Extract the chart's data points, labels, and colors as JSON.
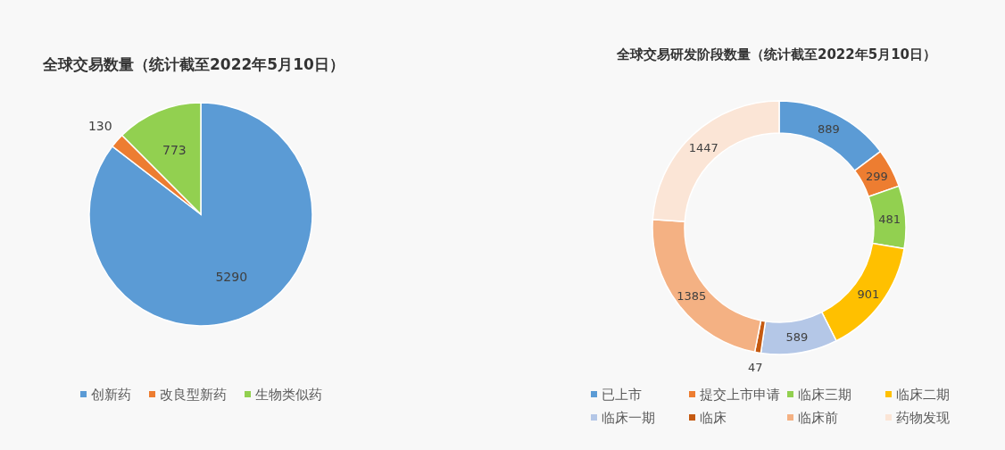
{
  "chart_data": [
    {
      "type": "pie",
      "title": "全球交易数量（统计截至2022年5月10日）",
      "categories": [
        "创新药",
        "改良型新药",
        "生物类似药"
      ],
      "values": [
        5290,
        130,
        773
      ],
      "colors": [
        "#5b9bd5",
        "#ed7d31",
        "#92d050"
      ],
      "data_labels": true,
      "legend": "bottom"
    },
    {
      "type": "donut",
      "title": "全球交易研发阶段数量（统计截至2022年5月10日）",
      "categories": [
        "已上市",
        "提交上市申请",
        "临床三期",
        "临床二期",
        "临床一期",
        "临床",
        "临床前",
        "药物发现"
      ],
      "values": [
        889,
        299,
        481,
        901,
        589,
        47,
        1385,
        1447
      ],
      "colors": [
        "#5b9bd5",
        "#ed7d31",
        "#92d050",
        "#ffc000",
        "#b4c7e7",
        "#c55a11",
        "#f4b183",
        "#fbe5d6"
      ],
      "data_labels": true,
      "legend": "bottom"
    }
  ]
}
